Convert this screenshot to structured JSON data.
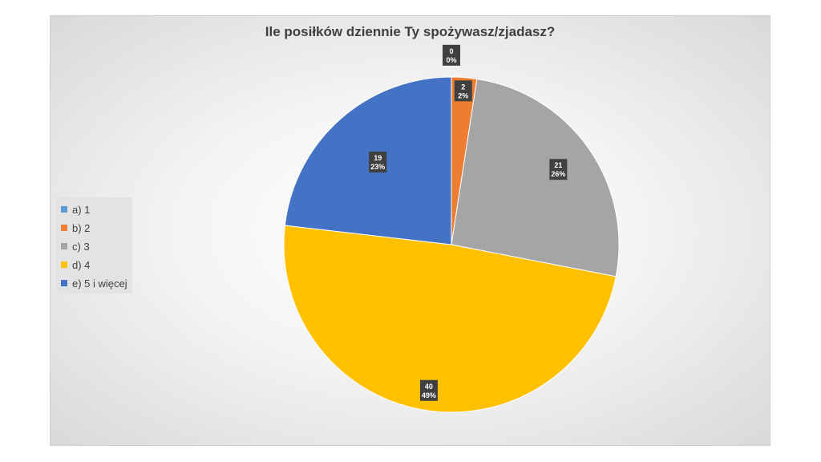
{
  "chart_data": {
    "type": "pie",
    "title": "Ile posiłków dziennie Ty spożywasz/zjadasz?",
    "categories": [
      "a) 1",
      "b) 2",
      "c) 3",
      "d) 4",
      "e) 5 i więcej"
    ],
    "values": [
      0,
      2,
      21,
      40,
      19
    ],
    "percent_labels": [
      "0%",
      "2%",
      "26%",
      "49%",
      "23%"
    ],
    "value_labels": [
      "0",
      "2",
      "21",
      "40",
      "19"
    ],
    "colors": [
      "#5B9BD5",
      "#ED7D31",
      "#A5A5A5",
      "#FFC000",
      "#4472C4"
    ],
    "legend_position": "left",
    "data_labels": true
  }
}
